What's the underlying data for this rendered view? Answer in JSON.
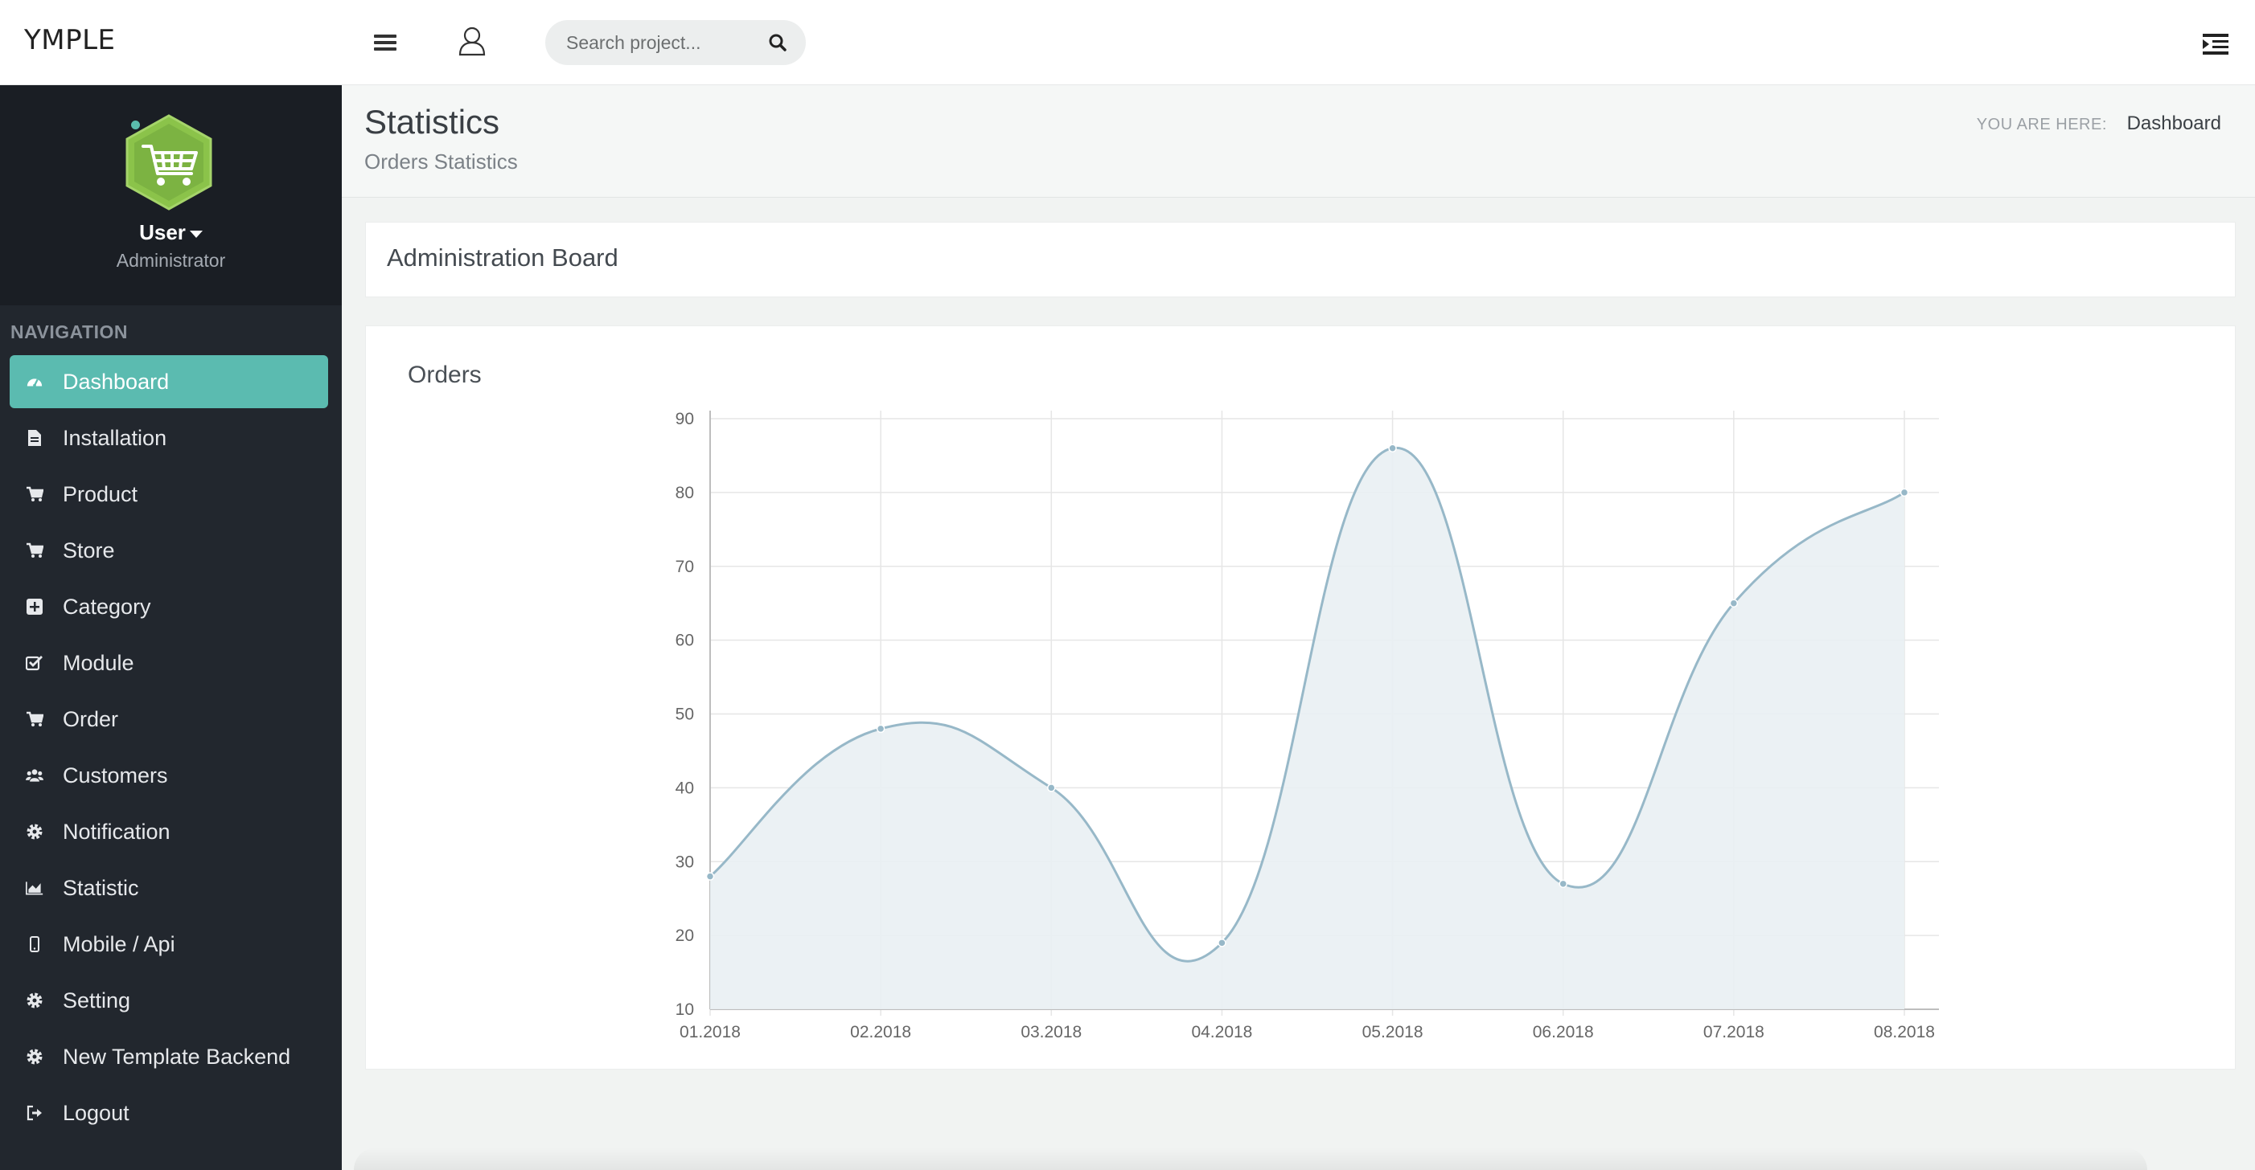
{
  "app": {
    "brand": "YMPLE"
  },
  "topbar": {
    "search_placeholder": "Search project...",
    "icons": [
      "hamburger-icon",
      "user-outline-icon",
      "search-icon",
      "indent-menu-icon"
    ]
  },
  "sidebar": {
    "user": {
      "name": "User",
      "role": "Administrator"
    },
    "nav_title": "NAVIGATION",
    "items": [
      {
        "label": "Dashboard",
        "icon": "dashboard-icon",
        "active": true
      },
      {
        "label": "Installation",
        "icon": "file-icon"
      },
      {
        "label": "Product",
        "icon": "cart-icon"
      },
      {
        "label": "Store",
        "icon": "cart-icon"
      },
      {
        "label": "Category",
        "icon": "plus-square-icon"
      },
      {
        "label": "Module",
        "icon": "check-square-icon"
      },
      {
        "label": "Order",
        "icon": "cart-icon"
      },
      {
        "label": "Customers",
        "icon": "users-icon"
      },
      {
        "label": "Notification",
        "icon": "gear-icon"
      },
      {
        "label": "Statistic",
        "icon": "area-chart-icon"
      },
      {
        "label": "Mobile / Api",
        "icon": "mobile-icon"
      },
      {
        "label": "Setting",
        "icon": "gear-icon"
      },
      {
        "label": "New Template Backend",
        "icon": "gear-icon"
      },
      {
        "label": "Logout",
        "icon": "sign-out-icon"
      }
    ]
  },
  "header": {
    "title": "Statistics",
    "subtitle": "Orders Statistics",
    "breadcrumb_label": "YOU ARE HERE:",
    "breadcrumb_current": "Dashboard"
  },
  "board": {
    "title": "Administration Board"
  },
  "orders_panel": {
    "title": "Orders"
  },
  "colors": {
    "accent": "#5bbbb0",
    "sidebar": "#22272e",
    "line": "#97b8c8",
    "fill": "#e9eff3"
  },
  "chart_data": {
    "type": "area",
    "title": "",
    "xlabel": "",
    "ylabel": "",
    "categories": [
      "01.2018",
      "02.2018",
      "03.2018",
      "04.2018",
      "05.2018",
      "06.2018",
      "07.2018",
      "08.2018"
    ],
    "series": [
      {
        "values": [
          28,
          48,
          40,
          19,
          86,
          27,
          65,
          80
        ]
      }
    ],
    "ylim": [
      10,
      90
    ],
    "yticks": [
      10,
      20,
      30,
      40,
      50,
      60,
      70,
      80,
      90
    ],
    "grid": true,
    "legend": "none"
  }
}
